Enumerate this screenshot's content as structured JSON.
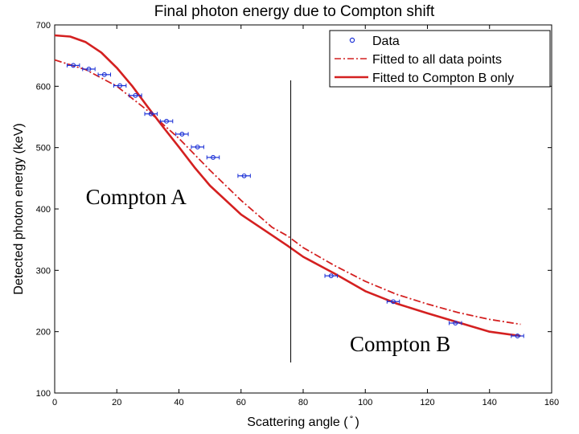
{
  "colors": {
    "data": "#1a2fd6",
    "fit_all": "#d42020",
    "fit_b": "#d42020",
    "axis": "#000000"
  },
  "chart_data": {
    "type": "scatter",
    "title": "Final photon energy due to Compton shift",
    "xlabel": "Scattering angle ( ̊ )",
    "ylabel": "Detected photon energy (keV)",
    "xlim": [
      0,
      160
    ],
    "ylim": [
      100,
      700
    ],
    "xticks": [
      0,
      20,
      40,
      60,
      80,
      100,
      120,
      140,
      160
    ],
    "yticks": [
      100,
      200,
      300,
      400,
      500,
      600,
      700
    ],
    "series": [
      {
        "name": "Data",
        "kind": "points",
        "x": [
          6,
          11,
          16,
          21,
          26,
          31,
          36,
          41,
          46,
          51,
          61,
          89,
          109,
          129,
          149
        ],
        "y": [
          634,
          628,
          619,
          601,
          585,
          555,
          543,
          522,
          501,
          484,
          454,
          291,
          249,
          214,
          193
        ],
        "xerr": 2
      },
      {
        "name": "Fitted to all data points",
        "kind": "line",
        "style": "dash-dot",
        "x": [
          0,
          10,
          20,
          30,
          40,
          50,
          60,
          70,
          75,
          80,
          90,
          100,
          110,
          120,
          130,
          140,
          150
        ],
        "y": [
          643,
          627,
          600,
          560,
          515,
          463,
          414,
          370,
          356,
          337,
          308,
          282,
          261,
          245,
          231,
          220,
          212
        ]
      },
      {
        "name": "Fitted to Compton B only",
        "kind": "line",
        "style": "solid",
        "x": [
          0,
          5,
          10,
          15,
          20,
          25,
          30,
          35,
          40,
          45,
          50,
          60,
          70,
          75,
          80,
          90,
          100,
          110,
          120,
          130,
          140,
          150
        ],
        "y": [
          683,
          681,
          672,
          655,
          630,
          600,
          566,
          533,
          501,
          468,
          438,
          391,
          357,
          340,
          322,
          295,
          266,
          246,
          230,
          215,
          200,
          193
        ]
      }
    ],
    "divider_x": 76,
    "annotations": [
      {
        "text": "Compton A",
        "x": 10,
        "y": 408
      },
      {
        "text": "Compton B",
        "x": 95,
        "y": 168
      }
    ],
    "legend_position": "top-right"
  }
}
